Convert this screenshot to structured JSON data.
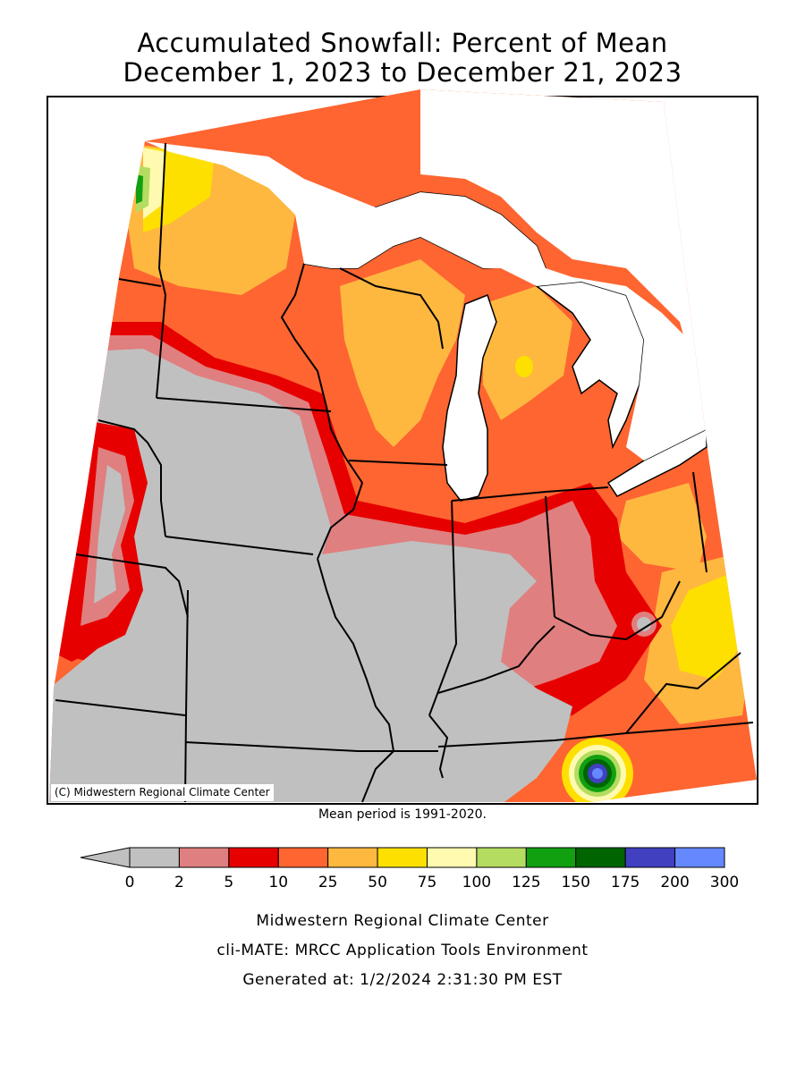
{
  "title_line1": "Accumulated Snowfall: Percent of Mean",
  "title_line2": "December 1, 2023 to December 21, 2023",
  "copyright": "(C) Midwestern Regional Climate Center",
  "mean_note": "Mean period is 1991-2020.",
  "legend": {
    "labels": [
      "0",
      "2",
      "5",
      "10",
      "25",
      "50",
      "75",
      "100",
      "125",
      "150",
      "175",
      "200",
      "300"
    ],
    "colors": [
      "#c0c0c0",
      "#e07f7f",
      "#e70000",
      "#fe6531",
      "#feb840",
      "#fde000",
      "#fffab0",
      "#b4dc60",
      "#10a010",
      "#006400",
      "#4040c0",
      "#6688ff"
    ]
  },
  "footer_line1": "Midwestern Regional Climate Center",
  "footer_line2": "cli-MATE: MRCC Application Tools Environment",
  "footer_line3": "Generated at: 1/2/2024 2:31:30 PM EST"
}
